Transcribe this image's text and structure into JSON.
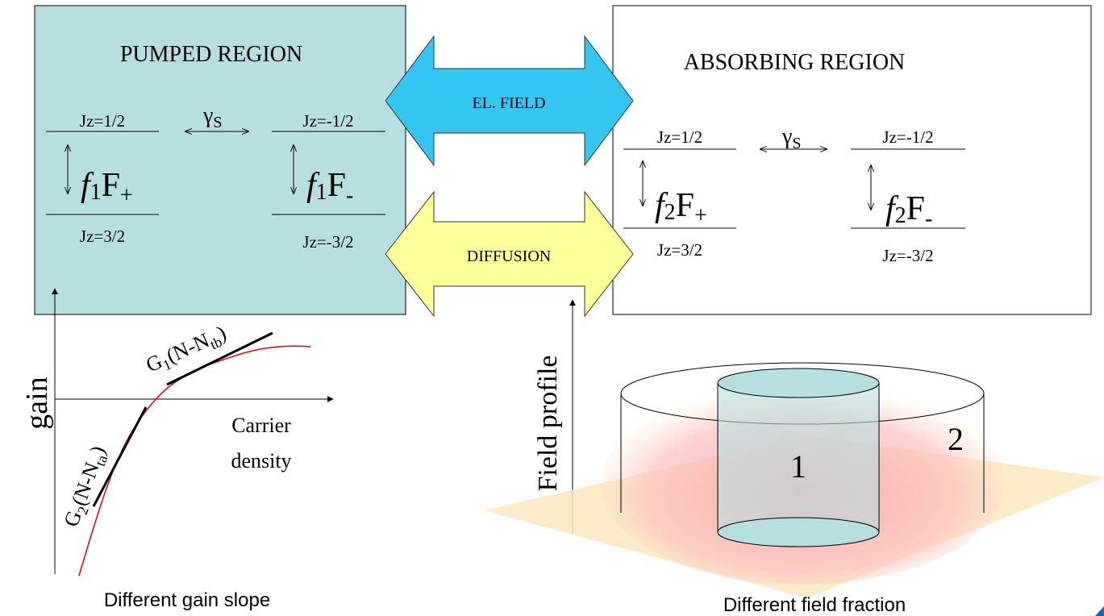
{
  "pumped_region": {
    "title": "PUMPED REGION",
    "levels": {
      "upper_left": "Jz=1/2",
      "upper_right": "Jz=-1/2",
      "lower_left": "Jz=3/2",
      "lower_right": "Jz=-3/2"
    },
    "spin_rate": {
      "symbol": "γ",
      "subscript": "S"
    },
    "populations": [
      {
        "f": "f",
        "index": "1",
        "F": "F",
        "sign": "+"
      },
      {
        "f": "f",
        "index": "1",
        "F": "F",
        "sign": "-"
      }
    ]
  },
  "arrows": {
    "upper": "EL. FIELD",
    "lower": "DIFFUSION"
  },
  "absorbing_region": {
    "title": "ABSORBING REGION",
    "levels": {
      "upper_left": "Jz=1/2",
      "upper_right": "Jz=-1/2",
      "lower_left": "Jz=3/2",
      "lower_right": "Jz=-3/2"
    },
    "spin_rate": {
      "symbol": "γ",
      "subscript": "S"
    },
    "populations": [
      {
        "f": "f",
        "index": "2",
        "F": "F",
        "sign": "+"
      },
      {
        "f": "f",
        "index": "2",
        "F": "F",
        "sign": "-"
      }
    ]
  },
  "gain_plot": {
    "axis_label": "gain",
    "x_label": [
      "Carrier",
      "density"
    ],
    "tangents": [
      {
        "parts": [
          "G",
          "1",
          "(N-N",
          "tb",
          ")"
        ]
      },
      {
        "parts": [
          "G",
          "2",
          "(N-N",
          "ta",
          ")"
        ]
      }
    ],
    "caption": "Different gain slope"
  },
  "field_plot": {
    "axis_label": "Field profile",
    "regions": [
      "1",
      "2"
    ],
    "caption": "Different field fraction"
  }
}
